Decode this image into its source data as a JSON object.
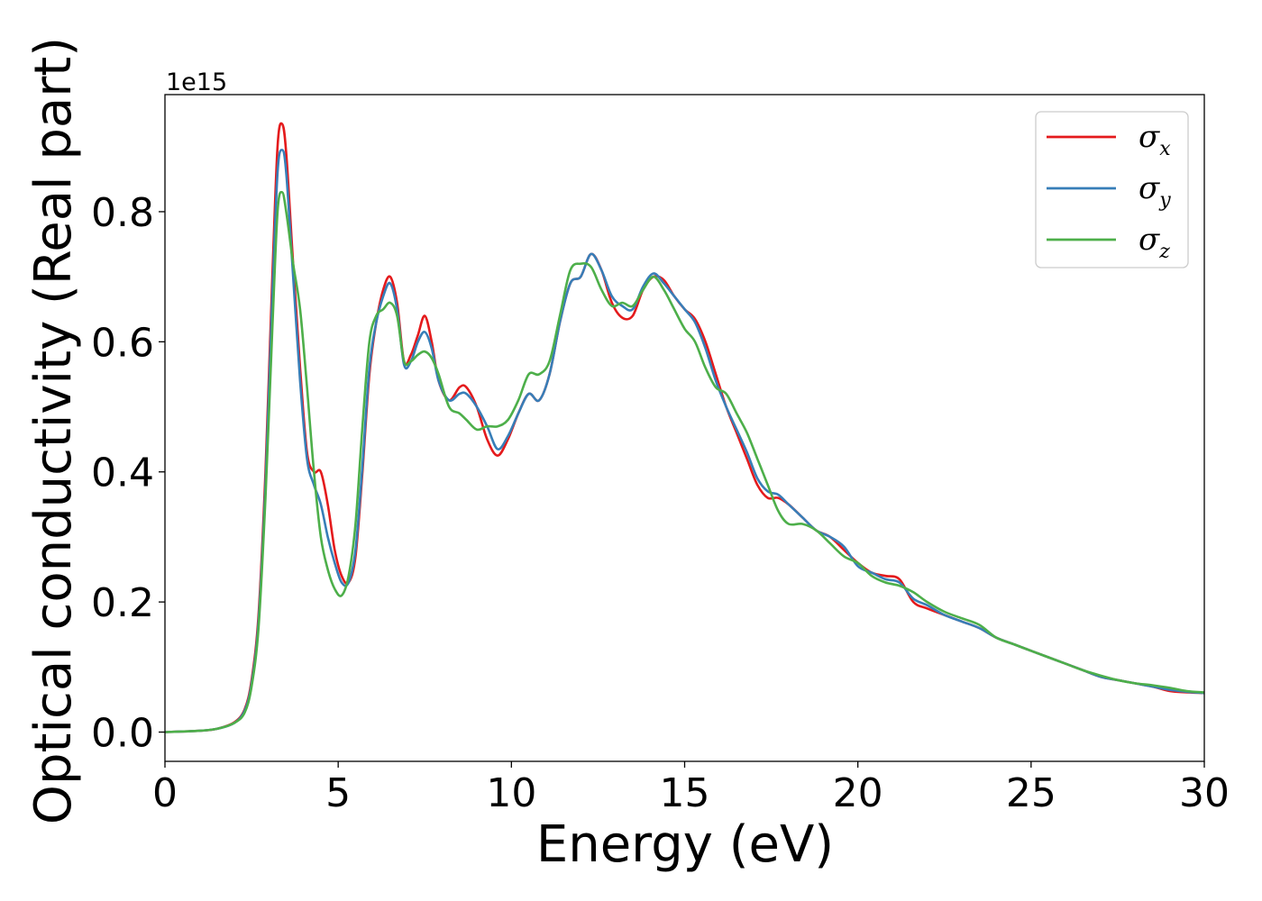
{
  "chart_data": {
    "type": "line",
    "title": "",
    "xlabel": "Energy (eV)",
    "ylabel": "Optical conductivity (Real part)",
    "y_offset_label": "1e15",
    "xlim": [
      0,
      30
    ],
    "ylim": [
      -0.045,
      0.98
    ],
    "xticks": [
      0,
      5,
      10,
      15,
      20,
      25,
      30
    ],
    "xtick_labels": [
      "0",
      "5",
      "10",
      "15",
      "20",
      "25",
      "30"
    ],
    "yticks": [
      0.0,
      0.2,
      0.4,
      0.6,
      0.8
    ],
    "ytick_labels": [
      "0.0",
      "0.2",
      "0.4",
      "0.6",
      "0.8"
    ],
    "grid": false,
    "legend_position": "top-right",
    "series": [
      {
        "name": "σx",
        "symbol": "σ",
        "subscript": "x",
        "color": "#e41a1c",
        "points": [
          [
            0,
            0.0
          ],
          [
            1,
            0.002
          ],
          [
            1.5,
            0.005
          ],
          [
            2,
            0.015
          ],
          [
            2.3,
            0.035
          ],
          [
            2.5,
            0.08
          ],
          [
            2.7,
            0.18
          ],
          [
            2.9,
            0.4
          ],
          [
            3.1,
            0.7
          ],
          [
            3.25,
            0.9
          ],
          [
            3.38,
            0.935
          ],
          [
            3.5,
            0.89
          ],
          [
            3.7,
            0.72
          ],
          [
            3.9,
            0.56
          ],
          [
            4.1,
            0.43
          ],
          [
            4.3,
            0.4
          ],
          [
            4.5,
            0.4
          ],
          [
            4.7,
            0.35
          ],
          [
            4.9,
            0.28
          ],
          [
            5.1,
            0.24
          ],
          [
            5.3,
            0.23
          ],
          [
            5.5,
            0.27
          ],
          [
            5.7,
            0.4
          ],
          [
            5.9,
            0.55
          ],
          [
            6.1,
            0.63
          ],
          [
            6.3,
            0.68
          ],
          [
            6.5,
            0.7
          ],
          [
            6.7,
            0.66
          ],
          [
            6.9,
            0.57
          ],
          [
            7.1,
            0.58
          ],
          [
            7.3,
            0.61
          ],
          [
            7.5,
            0.64
          ],
          [
            7.7,
            0.6
          ],
          [
            7.9,
            0.54
          ],
          [
            8.2,
            0.51
          ],
          [
            8.5,
            0.53
          ],
          [
            8.7,
            0.53
          ],
          [
            9.0,
            0.5
          ],
          [
            9.3,
            0.45
          ],
          [
            9.6,
            0.425
          ],
          [
            9.9,
            0.45
          ],
          [
            10.2,
            0.49
          ],
          [
            10.5,
            0.52
          ],
          [
            10.8,
            0.51
          ],
          [
            11.1,
            0.55
          ],
          [
            11.4,
            0.63
          ],
          [
            11.7,
            0.69
          ],
          [
            12.0,
            0.7
          ],
          [
            12.3,
            0.735
          ],
          [
            12.6,
            0.71
          ],
          [
            12.9,
            0.66
          ],
          [
            13.2,
            0.637
          ],
          [
            13.5,
            0.64
          ],
          [
            13.8,
            0.68
          ],
          [
            14.1,
            0.7
          ],
          [
            14.4,
            0.695
          ],
          [
            14.7,
            0.67
          ],
          [
            15.0,
            0.65
          ],
          [
            15.3,
            0.635
          ],
          [
            15.6,
            0.6
          ],
          [
            15.9,
            0.55
          ],
          [
            16.2,
            0.5
          ],
          [
            16.5,
            0.46
          ],
          [
            16.8,
            0.42
          ],
          [
            17.1,
            0.38
          ],
          [
            17.4,
            0.36
          ],
          [
            17.7,
            0.36
          ],
          [
            18.0,
            0.35
          ],
          [
            18.4,
            0.33
          ],
          [
            18.8,
            0.31
          ],
          [
            19.2,
            0.3
          ],
          [
            19.6,
            0.28
          ],
          [
            20.0,
            0.26
          ],
          [
            20.4,
            0.245
          ],
          [
            20.8,
            0.24
          ],
          [
            21.2,
            0.235
          ],
          [
            21.6,
            0.2
          ],
          [
            22.0,
            0.19
          ],
          [
            22.5,
            0.18
          ],
          [
            23.0,
            0.17
          ],
          [
            23.5,
            0.16
          ],
          [
            24.0,
            0.145
          ],
          [
            24.5,
            0.135
          ],
          [
            25.0,
            0.125
          ],
          [
            25.5,
            0.115
          ],
          [
            26.0,
            0.105
          ],
          [
            26.5,
            0.095
          ],
          [
            27.0,
            0.085
          ],
          [
            27.5,
            0.08
          ],
          [
            28.0,
            0.075
          ],
          [
            28.5,
            0.07
          ],
          [
            29.0,
            0.063
          ],
          [
            29.5,
            0.061
          ],
          [
            30,
            0.06
          ]
        ]
      },
      {
        "name": "σy",
        "symbol": "σ",
        "subscript": "y",
        "color": "#377eb8",
        "points": [
          [
            0,
            0.0
          ],
          [
            1,
            0.002
          ],
          [
            1.5,
            0.005
          ],
          [
            2,
            0.014
          ],
          [
            2.3,
            0.033
          ],
          [
            2.5,
            0.075
          ],
          [
            2.7,
            0.17
          ],
          [
            2.9,
            0.38
          ],
          [
            3.1,
            0.67
          ],
          [
            3.25,
            0.86
          ],
          [
            3.38,
            0.895
          ],
          [
            3.5,
            0.86
          ],
          [
            3.7,
            0.7
          ],
          [
            3.9,
            0.54
          ],
          [
            4.1,
            0.42
          ],
          [
            4.3,
            0.38
          ],
          [
            4.5,
            0.35
          ],
          [
            4.7,
            0.3
          ],
          [
            4.9,
            0.26
          ],
          [
            5.1,
            0.23
          ],
          [
            5.3,
            0.23
          ],
          [
            5.5,
            0.28
          ],
          [
            5.7,
            0.41
          ],
          [
            5.9,
            0.56
          ],
          [
            6.1,
            0.63
          ],
          [
            6.3,
            0.67
          ],
          [
            6.5,
            0.69
          ],
          [
            6.7,
            0.65
          ],
          [
            6.9,
            0.565
          ],
          [
            7.1,
            0.57
          ],
          [
            7.3,
            0.6
          ],
          [
            7.5,
            0.615
          ],
          [
            7.7,
            0.59
          ],
          [
            7.9,
            0.54
          ],
          [
            8.2,
            0.51
          ],
          [
            8.5,
            0.52
          ],
          [
            8.7,
            0.52
          ],
          [
            9.0,
            0.5
          ],
          [
            9.3,
            0.47
          ],
          [
            9.6,
            0.435
          ],
          [
            9.9,
            0.455
          ],
          [
            10.2,
            0.49
          ],
          [
            10.5,
            0.52
          ],
          [
            10.8,
            0.51
          ],
          [
            11.1,
            0.55
          ],
          [
            11.4,
            0.63
          ],
          [
            11.7,
            0.69
          ],
          [
            12.0,
            0.7
          ],
          [
            12.3,
            0.735
          ],
          [
            12.6,
            0.71
          ],
          [
            12.9,
            0.67
          ],
          [
            13.2,
            0.655
          ],
          [
            13.5,
            0.65
          ],
          [
            13.8,
            0.685
          ],
          [
            14.1,
            0.705
          ],
          [
            14.4,
            0.69
          ],
          [
            14.7,
            0.67
          ],
          [
            15.0,
            0.65
          ],
          [
            15.3,
            0.63
          ],
          [
            15.6,
            0.59
          ],
          [
            15.9,
            0.54
          ],
          [
            16.2,
            0.5
          ],
          [
            16.5,
            0.465
          ],
          [
            16.8,
            0.43
          ],
          [
            17.1,
            0.39
          ],
          [
            17.4,
            0.37
          ],
          [
            17.7,
            0.365
          ],
          [
            18.0,
            0.35
          ],
          [
            18.4,
            0.33
          ],
          [
            18.8,
            0.31
          ],
          [
            19.2,
            0.3
          ],
          [
            19.6,
            0.285
          ],
          [
            20.0,
            0.255
          ],
          [
            20.4,
            0.245
          ],
          [
            20.8,
            0.235
          ],
          [
            21.2,
            0.23
          ],
          [
            21.6,
            0.205
          ],
          [
            22.0,
            0.195
          ],
          [
            22.5,
            0.18
          ],
          [
            23.0,
            0.17
          ],
          [
            23.5,
            0.16
          ],
          [
            24.0,
            0.145
          ],
          [
            24.5,
            0.135
          ],
          [
            25.0,
            0.125
          ],
          [
            25.5,
            0.115
          ],
          [
            26.0,
            0.105
          ],
          [
            26.5,
            0.095
          ],
          [
            27.0,
            0.085
          ],
          [
            27.5,
            0.08
          ],
          [
            28.0,
            0.075
          ],
          [
            28.5,
            0.07
          ],
          [
            29.0,
            0.065
          ],
          [
            29.5,
            0.062
          ],
          [
            30,
            0.06
          ]
        ]
      },
      {
        "name": "σz",
        "symbol": "σ",
        "subscript": "z",
        "color": "#4daf4a",
        "points": [
          [
            0,
            0.0
          ],
          [
            1,
            0.002
          ],
          [
            1.5,
            0.005
          ],
          [
            2,
            0.014
          ],
          [
            2.3,
            0.03
          ],
          [
            2.5,
            0.07
          ],
          [
            2.7,
            0.16
          ],
          [
            2.9,
            0.36
          ],
          [
            3.1,
            0.62
          ],
          [
            3.25,
            0.8
          ],
          [
            3.38,
            0.83
          ],
          [
            3.5,
            0.8
          ],
          [
            3.7,
            0.72
          ],
          [
            3.9,
            0.65
          ],
          [
            4.1,
            0.53
          ],
          [
            4.3,
            0.4
          ],
          [
            4.5,
            0.3
          ],
          [
            4.7,
            0.25
          ],
          [
            4.9,
            0.22
          ],
          [
            5.1,
            0.21
          ],
          [
            5.3,
            0.24
          ],
          [
            5.5,
            0.32
          ],
          [
            5.7,
            0.47
          ],
          [
            5.9,
            0.6
          ],
          [
            6.1,
            0.64
          ],
          [
            6.3,
            0.65
          ],
          [
            6.5,
            0.66
          ],
          [
            6.7,
            0.64
          ],
          [
            6.9,
            0.57
          ],
          [
            7.1,
            0.57
          ],
          [
            7.3,
            0.58
          ],
          [
            7.5,
            0.585
          ],
          [
            7.7,
            0.575
          ],
          [
            7.9,
            0.55
          ],
          [
            8.2,
            0.5
          ],
          [
            8.5,
            0.49
          ],
          [
            8.7,
            0.48
          ],
          [
            9.0,
            0.465
          ],
          [
            9.3,
            0.47
          ],
          [
            9.6,
            0.47
          ],
          [
            9.9,
            0.48
          ],
          [
            10.2,
            0.51
          ],
          [
            10.5,
            0.55
          ],
          [
            10.8,
            0.55
          ],
          [
            11.1,
            0.57
          ],
          [
            11.4,
            0.64
          ],
          [
            11.7,
            0.71
          ],
          [
            12.0,
            0.72
          ],
          [
            12.3,
            0.715
          ],
          [
            12.6,
            0.68
          ],
          [
            12.9,
            0.655
          ],
          [
            13.2,
            0.66
          ],
          [
            13.5,
            0.655
          ],
          [
            13.8,
            0.68
          ],
          [
            14.1,
            0.7
          ],
          [
            14.4,
            0.68
          ],
          [
            14.7,
            0.65
          ],
          [
            15.0,
            0.62
          ],
          [
            15.3,
            0.6
          ],
          [
            15.6,
            0.56
          ],
          [
            15.9,
            0.53
          ],
          [
            16.2,
            0.52
          ],
          [
            16.5,
            0.49
          ],
          [
            16.8,
            0.46
          ],
          [
            17.1,
            0.42
          ],
          [
            17.4,
            0.38
          ],
          [
            17.7,
            0.34
          ],
          [
            18.0,
            0.32
          ],
          [
            18.4,
            0.32
          ],
          [
            18.8,
            0.31
          ],
          [
            19.2,
            0.29
          ],
          [
            19.6,
            0.27
          ],
          [
            20.0,
            0.26
          ],
          [
            20.4,
            0.24
          ],
          [
            20.8,
            0.23
          ],
          [
            21.2,
            0.225
          ],
          [
            21.6,
            0.215
          ],
          [
            22.0,
            0.2
          ],
          [
            22.5,
            0.185
          ],
          [
            23.0,
            0.175
          ],
          [
            23.5,
            0.165
          ],
          [
            24.0,
            0.145
          ],
          [
            24.5,
            0.135
          ],
          [
            25.0,
            0.125
          ],
          [
            25.5,
            0.115
          ],
          [
            26.0,
            0.105
          ],
          [
            26.5,
            0.095
          ],
          [
            27.0,
            0.087
          ],
          [
            27.5,
            0.08
          ],
          [
            28.0,
            0.075
          ],
          [
            28.5,
            0.072
          ],
          [
            29.0,
            0.068
          ],
          [
            29.5,
            0.063
          ],
          [
            30,
            0.061
          ]
        ]
      }
    ]
  }
}
